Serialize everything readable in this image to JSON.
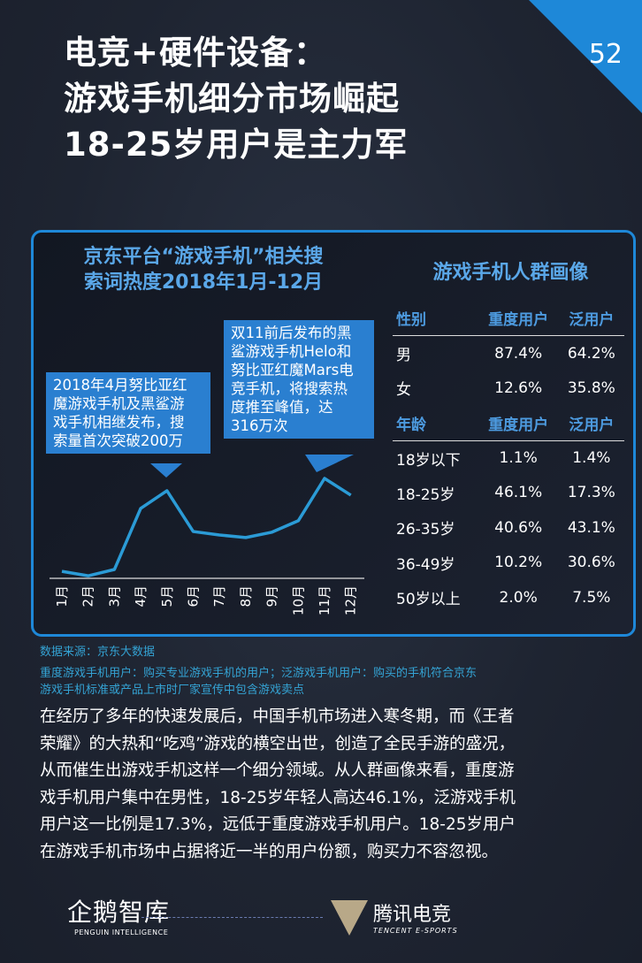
{
  "page": {
    "title_lines": [
      "电竞+硬件设备：",
      "游戏手机细分市场崛起",
      "18-25岁用户是主力军"
    ],
    "page_number": "52"
  },
  "chart_data": {
    "type": "line",
    "title": "京东平台“游戏手机”相关搜索词热度2018年1月-12月",
    "title_lines": [
      "京东平台“游戏手机”相关搜",
      "索词热度2018年1月-12月"
    ],
    "categories": [
      "1月",
      "2月",
      "3月",
      "4月",
      "5月",
      "6月",
      "7月",
      "8月",
      "9月",
      "10月",
      "11月",
      "12月"
    ],
    "values": [
      22,
      8,
      28,
      221,
      277,
      148,
      137,
      129,
      146,
      182,
      316,
      263
    ],
    "unit": "万次",
    "ylim": [
      0,
      316
    ],
    "grid": false,
    "color": "#2b9bd6",
    "annotations": [
      {
        "month": "5月",
        "text": "2018年4月努比亚红魔游戏手机及黑鲨游戏手机相继发布，搜索量首次突破200万",
        "lines": [
          "2018年4月努比亚红",
          "魔游戏手机及黑鲨游",
          "戏手机相继发布，搜",
          "索量首次突破200万"
        ]
      },
      {
        "month": "11月",
        "text": "双11前后发布的黑鲨游戏手机Helo和努比亚红魔Mars电竞手机，将搜索热度推至峰值，达316万次",
        "lines": [
          "双11前后发布的黑",
          "鲨游戏手机Helo和",
          "努比亚红魔Mars电",
          "竞手机，将搜索热",
          "度推至峰值，达",
          "316万次"
        ]
      }
    ]
  },
  "table": {
    "title": "游戏手机人群画像",
    "gender_header": [
      "性别",
      "重度用户",
      "泛用户"
    ],
    "gender_rows": [
      [
        "男",
        "87.4%",
        "64.2%"
      ],
      [
        "女",
        "12.6%",
        "35.8%"
      ]
    ],
    "age_header": [
      "年龄",
      "重度用户",
      "泛用户"
    ],
    "age_rows": [
      [
        "18岁以下",
        "1.1%",
        "1.4%"
      ],
      [
        "18-25岁",
        "46.1%",
        "17.3%"
      ],
      [
        "26-35岁",
        "40.6%",
        "43.1%"
      ],
      [
        "36-49岁",
        "10.2%",
        "30.6%"
      ],
      [
        "50岁以上",
        "2.0%",
        "7.5%"
      ]
    ]
  },
  "source": "数据来源：京东大数据",
  "definition_lines": [
    "重度游戏手机用户：购买专业游戏手机的用户；泛游戏手机用户：购买的手机符合京东",
    "游戏手机标准或产品上市时厂家宣传中包含游戏卖点"
  ],
  "body_lines": [
    "在经历了多年的快速发展后，中国手机市场进入寒冬期，而《王者",
    "荣耀》的大热和“吃鸡”游戏的横空出世，创造了全民手游的盛况，",
    "从而催生出游戏手机这样一个细分领域。从人群画像来看，重度游",
    "戏手机用户集中在男性，18-25岁年轻人高达46.1%，泛游戏手机",
    "用户这一比例是17.3%，远低于重度游戏手机用户。18-25岁用户",
    "在游戏手机市场中占据将近一半的用户份额，购买力不容忽视。"
  ],
  "footer": {
    "left_logo": "企鹅智库",
    "left_sub": "PENGUIN INTELLIGENCE",
    "right_logo": "腾讯电竞",
    "right_sub": "TENCENT E-SPORTS"
  }
}
